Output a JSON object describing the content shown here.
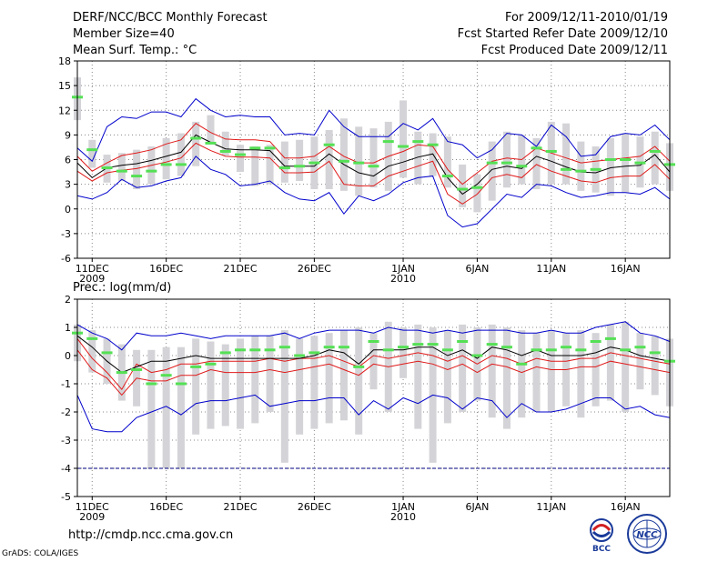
{
  "header": {
    "title": "DERF/NCC/BCC Monthly Forecast",
    "member_size": "Member Size=40",
    "variable": "Mean Surf. Temp.: °C",
    "period": "For 2009/12/11-2010/01/19",
    "started": "Fcst Started Refer Date 2009/12/10",
    "produced": "Fcst Produced Date 2009/12/11"
  },
  "footer": {
    "url": "http://cmdp.ncc.cma.gov.cn",
    "credit": "GrADS: COLA/IGES",
    "logo_left": "BCC",
    "logo_right": "NCC"
  },
  "colors": {
    "box": "#d4d4d8",
    "mean": "#000000",
    "inner": "#e01a1a",
    "outer": "#0000cc",
    "marker": "#55e055",
    "grid": "#888888",
    "dashed_floor": "#000080"
  },
  "chart_data": [
    {
      "type": "box-ensemble",
      "title": "Mean Surf. Temp.: °C",
      "ylim": [
        -6,
        18
      ],
      "yticks": [
        -6,
        -3,
        0,
        3,
        6,
        9,
        12,
        15,
        18
      ],
      "xlim": [
        0,
        40
      ],
      "xticks": [
        {
          "x": 1,
          "label": "11DEC",
          "sub": "2009"
        },
        {
          "x": 6,
          "label": "16DEC",
          "sub": ""
        },
        {
          "x": 11,
          "label": "21DEC",
          "sub": ""
        },
        {
          "x": 16,
          "label": "26DEC",
          "sub": ""
        },
        {
          "x": 22,
          "label": "1JAN",
          "sub": "2010"
        },
        {
          "x": 27,
          "label": "6JAN",
          "sub": ""
        },
        {
          "x": 32,
          "label": "11JAN",
          "sub": ""
        },
        {
          "x": 37,
          "label": "16JAN",
          "sub": ""
        }
      ],
      "box_low": [
        10.8,
        5.0,
        3.2,
        3.4,
        2.4,
        3.0,
        3.6,
        4.0,
        5.2,
        8.0,
        6.5,
        4.5,
        2.8,
        3.0,
        3.2,
        3.4,
        2.4,
        2.4,
        2.2,
        1.6,
        2.6,
        2.2,
        3.8,
        3.0,
        4.0,
        2.6,
        0.2,
        -0.4,
        1.0,
        2.6,
        3.0,
        2.4,
        3.0,
        3.0,
        2.2,
        2.0,
        1.6,
        2.0,
        2.6,
        3.0,
        2.2
      ],
      "box_high": [
        16.0,
        8.4,
        6.6,
        6.8,
        7.2,
        7.6,
        8.6,
        9.2,
        10.6,
        11.4,
        9.4,
        7.8,
        7.6,
        7.8,
        8.2,
        8.4,
        8.8,
        9.6,
        11.0,
        10.0,
        9.8,
        10.6,
        13.2,
        9.4,
        9.2,
        8.8,
        5.4,
        4.2,
        8.2,
        9.4,
        9.0,
        8.6,
        10.6,
        10.4,
        8.2,
        7.6,
        8.6,
        9.2,
        8.8,
        9.4,
        8.0
      ],
      "mean": [
        5.6,
        3.8,
        5.0,
        5.3,
        5.5,
        5.9,
        6.4,
        6.9,
        9.0,
        8.1,
        7.3,
        7.2,
        7.2,
        7.1,
        5.2,
        5.2,
        5.2,
        6.7,
        5.4,
        4.4,
        4.0,
        5.2,
        5.7,
        6.3,
        6.7,
        3.8,
        1.8,
        3.0,
        4.8,
        5.2,
        4.9,
        6.4,
        5.8,
        5.1,
        4.5,
        4.4,
        5.0,
        5.2,
        5.3,
        6.6,
        4.5
      ],
      "inner_low": [
        4.6,
        3.4,
        4.4,
        4.7,
        4.9,
        5.3,
        5.7,
        6.2,
        8.0,
        7.1,
        6.4,
        6.3,
        6.3,
        6.2,
        4.4,
        4.4,
        4.5,
        5.8,
        3.0,
        2.8,
        2.8,
        4.0,
        4.6,
        5.2,
        5.8,
        1.8,
        0.6,
        1.8,
        3.8,
        4.2,
        3.8,
        5.4,
        4.6,
        4.0,
        3.4,
        3.2,
        3.8,
        4.0,
        4.0,
        5.4,
        3.6
      ],
      "inner_high": [
        6.4,
        4.6,
        5.6,
        6.5,
        6.8,
        7.2,
        7.9,
        8.4,
        10.4,
        9.3,
        8.5,
        8.4,
        8.4,
        8.2,
        6.2,
        6.2,
        6.4,
        7.6,
        6.4,
        5.6,
        5.6,
        6.4,
        7.0,
        7.8,
        7.6,
        4.8,
        3.0,
        4.4,
        5.8,
        6.2,
        6.0,
        7.4,
        6.8,
        6.2,
        5.6,
        5.8,
        6.0,
        6.2,
        6.4,
        7.6,
        5.8
      ],
      "outer_low": [
        1.6,
        1.2,
        2.0,
        3.6,
        2.6,
        2.8,
        3.4,
        3.8,
        6.4,
        4.8,
        4.2,
        2.8,
        3.0,
        3.4,
        2.0,
        1.2,
        1.0,
        2.0,
        -0.6,
        1.6,
        1.0,
        1.8,
        3.2,
        3.8,
        4.0,
        -0.8,
        -2.2,
        -1.8,
        0.0,
        1.8,
        1.4,
        3.0,
        2.8,
        2.0,
        1.4,
        1.6,
        2.0,
        2.0,
        1.8,
        2.6,
        1.2
      ],
      "outer_high": [
        7.4,
        5.8,
        10.0,
        11.2,
        11.0,
        11.8,
        11.8,
        11.2,
        13.4,
        12.0,
        11.2,
        11.4,
        11.2,
        11.2,
        9.0,
        9.2,
        9.0,
        12.0,
        10.0,
        8.8,
        8.8,
        8.8,
        10.4,
        9.6,
        11.0,
        8.2,
        7.8,
        6.2,
        7.2,
        9.2,
        9.0,
        7.6,
        10.2,
        8.8,
        6.4,
        6.6,
        8.8,
        9.2,
        9.0,
        10.2,
        8.4
      ],
      "marker": [
        13.6,
        7.2,
        5.0,
        4.6,
        4.0,
        4.6,
        5.4,
        5.4,
        8.6,
        8.0,
        7.0,
        6.6,
        7.4,
        7.4,
        5.0,
        5.2,
        5.6,
        7.8,
        5.8,
        5.6,
        5.2,
        8.2,
        7.6,
        8.2,
        7.8,
        4.0,
        2.4,
        2.6,
        5.6,
        5.6,
        5.2,
        7.4,
        7.0,
        4.8,
        4.6,
        4.8,
        6.0,
        6.0,
        5.6,
        7.0,
        5.4
      ]
    },
    {
      "type": "box-ensemble",
      "title": "Prec.: log(mm/d)",
      "ylim": [
        -5,
        2
      ],
      "yticks": [
        -5,
        -4,
        -3,
        -2,
        -1,
        0,
        1,
        2
      ],
      "xlim": [
        0,
        40
      ],
      "xticks": [
        {
          "x": 1,
          "label": "11DEC",
          "sub": "2009"
        },
        {
          "x": 6,
          "label": "16DEC",
          "sub": ""
        },
        {
          "x": 11,
          "label": "21DEC",
          "sub": ""
        },
        {
          "x": 16,
          "label": "26DEC",
          "sub": ""
        },
        {
          "x": 22,
          "label": "1JAN",
          "sub": "2010"
        },
        {
          "x": 27,
          "label": "6JAN",
          "sub": ""
        },
        {
          "x": 32,
          "label": "11JAN",
          "sub": ""
        },
        {
          "x": 37,
          "label": "16JAN",
          "sub": ""
        }
      ],
      "floor": -4,
      "box_low": [
        -0.2,
        -0.6,
        -1.0,
        -1.6,
        -1.8,
        -4.0,
        -4.0,
        -4.0,
        -2.8,
        -2.6,
        -2.5,
        -2.6,
        -2.4,
        -2.0,
        -3.8,
        -2.8,
        -2.6,
        -2.4,
        -2.3,
        -2.8,
        -1.2,
        -2.0,
        -0.8,
        -2.6,
        -3.8,
        -2.4,
        -2.0,
        -1.6,
        -2.2,
        -2.6,
        -2.2,
        -2.0,
        -2.0,
        -1.8,
        -2.2,
        -1.8,
        -1.6,
        -2.0,
        -1.2,
        -1.4,
        -1.8
      ],
      "box_high": [
        1.1,
        0.9,
        0.6,
        0.4,
        0.2,
        0.2,
        0.3,
        0.3,
        0.6,
        0.5,
        0.4,
        0.6,
        0.7,
        0.7,
        0.9,
        0.6,
        0.7,
        0.8,
        0.9,
        1.0,
        0.8,
        1.2,
        1.0,
        1.1,
        1.0,
        0.9,
        1.1,
        1.0,
        1.1,
        1.0,
        0.9,
        0.8,
        0.9,
        0.8,
        0.9,
        0.8,
        1.1,
        1.2,
        0.8,
        0.7,
        0.6
      ],
      "mean": [
        0.7,
        0.3,
        -0.2,
        -0.6,
        -0.4,
        -0.2,
        -0.2,
        -0.1,
        0.0,
        -0.1,
        -0.1,
        -0.1,
        -0.1,
        -0.1,
        -0.1,
        -0.1,
        0.0,
        0.2,
        0.1,
        -0.3,
        0.2,
        0.2,
        0.2,
        0.3,
        0.3,
        0.0,
        0.2,
        -0.1,
        0.3,
        0.2,
        0.0,
        0.2,
        0.0,
        0.0,
        0.0,
        0.1,
        0.3,
        0.2,
        0.0,
        -0.1,
        -0.2
      ],
      "inner_low": [
        0.2,
        -0.5,
        -0.8,
        -1.4,
        -0.8,
        -0.9,
        -0.9,
        -0.7,
        -0.7,
        -0.5,
        -0.6,
        -0.6,
        -0.6,
        -0.5,
        -0.6,
        -0.5,
        -0.4,
        -0.3,
        -0.5,
        -0.7,
        -0.3,
        -0.4,
        -0.3,
        -0.2,
        -0.3,
        -0.5,
        -0.3,
        -0.6,
        -0.3,
        -0.4,
        -0.6,
        -0.4,
        -0.5,
        -0.5,
        -0.4,
        -0.4,
        -0.2,
        -0.3,
        -0.4,
        -0.5,
        -0.6
      ],
      "inner_high": [
        0.6,
        -0.1,
        -0.6,
        -1.2,
        -0.3,
        -0.6,
        -0.5,
        -0.3,
        -0.3,
        -0.2,
        -0.2,
        -0.2,
        -0.2,
        -0.1,
        -0.2,
        -0.1,
        -0.1,
        0.0,
        -0.2,
        -0.4,
        0.0,
        -0.1,
        0.0,
        0.1,
        0.0,
        -0.2,
        0.0,
        -0.3,
        0.0,
        -0.1,
        -0.3,
        -0.1,
        -0.2,
        -0.2,
        -0.1,
        -0.1,
        0.1,
        0.0,
        -0.1,
        -0.2,
        -0.3
      ],
      "outer_low": [
        -1.4,
        -2.6,
        -2.7,
        -2.7,
        -2.2,
        -2.0,
        -1.8,
        -2.1,
        -1.7,
        -1.6,
        -1.6,
        -1.5,
        -1.4,
        -1.8,
        -1.7,
        -1.6,
        -1.6,
        -1.5,
        -1.5,
        -2.1,
        -1.6,
        -1.9,
        -1.5,
        -1.7,
        -1.4,
        -1.5,
        -1.9,
        -1.5,
        -1.6,
        -2.2,
        -1.7,
        -2.0,
        -2.0,
        -1.9,
        -1.7,
        -1.5,
        -1.5,
        -1.9,
        -1.8,
        -2.1,
        -2.2
      ],
      "outer_high": [
        1.1,
        0.8,
        0.6,
        0.2,
        0.8,
        0.7,
        0.7,
        0.8,
        0.7,
        0.6,
        0.7,
        0.7,
        0.7,
        0.7,
        0.8,
        0.6,
        0.8,
        0.9,
        0.9,
        0.9,
        0.8,
        1.0,
        0.9,
        0.9,
        0.8,
        0.9,
        0.8,
        0.9,
        0.9,
        0.9,
        0.8,
        0.8,
        0.9,
        0.8,
        0.8,
        1.0,
        1.1,
        1.2,
        0.8,
        0.7,
        0.5
      ],
      "marker": [
        0.8,
        0.6,
        0.1,
        -0.6,
        -0.5,
        -1.0,
        -0.7,
        -1.0,
        -0.4,
        -0.3,
        0.1,
        0.2,
        0.2,
        0.2,
        0.3,
        0.0,
        0.1,
        0.3,
        0.3,
        -0.4,
        0.5,
        0.2,
        0.3,
        0.4,
        0.4,
        0.2,
        0.5,
        0.0,
        0.4,
        0.3,
        -0.3,
        0.2,
        0.2,
        0.3,
        0.2,
        0.5,
        0.6,
        0.2,
        0.3,
        0.1,
        -0.2
      ]
    }
  ]
}
